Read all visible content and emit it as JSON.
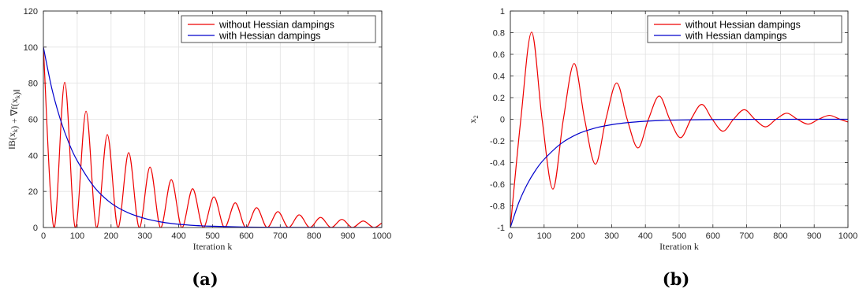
{
  "chart_data": [
    {
      "type": "line",
      "caption": "(a)",
      "ylabel": "‖B(x_k) + ∇f(x_k)‖",
      "xlabel": "Iteration k",
      "xlim": [
        0,
        1000
      ],
      "ylim": [
        0,
        120
      ],
      "xticks": [
        "0",
        "100",
        "200",
        "300",
        "400",
        "500",
        "600",
        "700",
        "800",
        "900",
        "1000"
      ],
      "yticks": [
        "0",
        "20",
        "40",
        "60",
        "80",
        "100",
        "120"
      ],
      "grid": true,
      "legend_position": "top-right",
      "series": [
        {
          "name": "without Hessian dampings",
          "color": "#ee0000",
          "x": [
            0,
            31,
            63,
            94,
            126,
            157,
            189,
            220,
            252,
            283,
            315,
            346,
            378,
            409,
            441,
            472,
            504,
            535,
            567,
            598,
            630,
            661,
            693,
            724,
            756,
            787,
            819,
            850,
            882,
            913,
            945,
            976,
            1000
          ],
          "y": [
            100,
            0,
            80.5,
            0,
            64.5,
            0,
            51.5,
            0,
            41.5,
            0,
            33.5,
            0,
            26.5,
            0,
            21.5,
            0,
            17,
            0,
            13.7,
            0,
            11,
            0,
            8.8,
            0,
            7,
            0,
            5.6,
            0,
            4.5,
            0,
            3.6,
            0,
            2.5
          ]
        },
        {
          "name": "with Hessian dampings",
          "color": "#0000cc",
          "x": [
            0,
            25,
            50,
            75,
            100,
            150,
            200,
            250,
            300,
            350,
            400,
            450,
            500,
            600,
            700,
            800,
            900,
            1000
          ],
          "y": [
            100,
            77,
            60,
            47,
            37,
            22.5,
            13.5,
            8.2,
            5,
            3,
            1.8,
            1.1,
            0.7,
            0.25,
            0.1,
            0.04,
            0.02,
            0.01
          ]
        }
      ]
    },
    {
      "type": "line",
      "caption": "(b)",
      "ylabel": "x_2",
      "xlabel": "Iteration k",
      "xlim": [
        0,
        1000
      ],
      "ylim": [
        -1,
        1
      ],
      "xticks": [
        "0",
        "100",
        "200",
        "300",
        "400",
        "500",
        "600",
        "700",
        "800",
        "900",
        "1000"
      ],
      "yticks": [
        "-1",
        "-0.8",
        "-0.6",
        "-0.4",
        "-0.2",
        "0",
        "0.2",
        "0.4",
        "0.6",
        "0.8",
        "1"
      ],
      "grid": true,
      "legend_position": "top-right",
      "series": [
        {
          "name": "without Hessian dampings",
          "color": "#ee0000",
          "x": [
            0,
            31,
            63,
            94,
            126,
            157,
            189,
            220,
            252,
            283,
            315,
            346,
            378,
            409,
            441,
            472,
            504,
            535,
            567,
            598,
            630,
            661,
            693,
            724,
            756,
            787,
            819,
            850,
            882,
            913,
            945,
            976,
            1000
          ],
          "y": [
            -1,
            0,
            0.805,
            0,
            -0.645,
            0,
            0.515,
            0,
            -0.415,
            0,
            0.335,
            0,
            -0.265,
            0,
            0.215,
            0,
            -0.17,
            0,
            0.137,
            0,
            -0.11,
            0,
            0.088,
            0,
            -0.07,
            0,
            0.056,
            0,
            -0.045,
            0,
            0.036,
            0,
            -0.025
          ]
        },
        {
          "name": "with Hessian dampings",
          "color": "#0000cc",
          "x": [
            0,
            25,
            50,
            75,
            100,
            150,
            200,
            250,
            300,
            350,
            400,
            450,
            500,
            600,
            700,
            800,
            900,
            1000
          ],
          "y": [
            -1,
            -0.77,
            -0.6,
            -0.47,
            -0.37,
            -0.225,
            -0.135,
            -0.082,
            -0.05,
            -0.03,
            -0.018,
            -0.011,
            -0.007,
            -0.0025,
            -0.001,
            -0.0004,
            -0.0002,
            -0.0001
          ]
        }
      ]
    }
  ]
}
